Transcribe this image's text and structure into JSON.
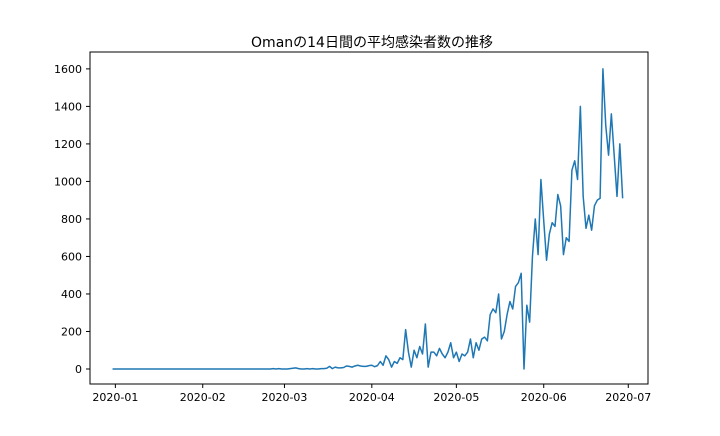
{
  "chart_data": {
    "type": "line",
    "title": "Omanの14日間の平均感染者数の推移",
    "xlabel": "",
    "ylabel": "",
    "x_start": "2019-12-31",
    "x_end": "2020-06-30",
    "xlim": [
      "2019-12-23",
      "2020-07-08"
    ],
    "ylim": [
      -80,
      1690
    ],
    "x_ticks": [
      {
        "date": "2020-01-01",
        "label": "2020-01"
      },
      {
        "date": "2020-02-01",
        "label": "2020-02"
      },
      {
        "date": "2020-03-01",
        "label": "2020-03"
      },
      {
        "date": "2020-04-01",
        "label": "2020-04"
      },
      {
        "date": "2020-05-01",
        "label": "2020-05"
      },
      {
        "date": "2020-06-01",
        "label": "2020-06"
      },
      {
        "date": "2020-07-01",
        "label": "2020-07"
      }
    ],
    "y_ticks": [
      0,
      200,
      400,
      600,
      800,
      1000,
      1200,
      1400,
      1600
    ],
    "grid": false,
    "legend": "none",
    "line_color": "#1f77b4",
    "series": [
      {
        "values": [
          0,
          0,
          0,
          0,
          0,
          0,
          0,
          0,
          0,
          0,
          0,
          0,
          0,
          0,
          0,
          0,
          0,
          0,
          0,
          0,
          0,
          0,
          0,
          0,
          0,
          0,
          0,
          0,
          0,
          0,
          0,
          0,
          0,
          0,
          0,
          0,
          0,
          0,
          0,
          0,
          0,
          0,
          0,
          0,
          0,
          0,
          0,
          0,
          0,
          0,
          0,
          0,
          0,
          0,
          0,
          0,
          0,
          2,
          0,
          2,
          0,
          0,
          0,
          2,
          4,
          6,
          2,
          0,
          0,
          2,
          0,
          2,
          0,
          0,
          2,
          2,
          4,
          14,
          2,
          10,
          6,
          6,
          8,
          16,
          14,
          10,
          16,
          20,
          16,
          14,
          14,
          18,
          20,
          12,
          18,
          40,
          20,
          70,
          50,
          10,
          40,
          30,
          60,
          50,
          210,
          90,
          10,
          100,
          60,
          120,
          80,
          240,
          10,
          90,
          90,
          70,
          110,
          80,
          60,
          90,
          140,
          60,
          90,
          40,
          80,
          70,
          90,
          160,
          60,
          140,
          100,
          160,
          170,
          150,
          290,
          320,
          300,
          400,
          160,
          200,
          290,
          360,
          320,
          440,
          460,
          510,
          0,
          340,
          250,
          600,
          800,
          610,
          1010,
          790,
          580,
          720,
          780,
          760,
          930,
          870,
          610,
          700,
          680,
          1060,
          1110,
          1010,
          1400,
          920,
          750,
          820,
          740,
          870,
          900,
          910,
          1600,
          1300,
          1140,
          1360,
          1140,
          920,
          1200,
          910
        ]
      }
    ]
  }
}
